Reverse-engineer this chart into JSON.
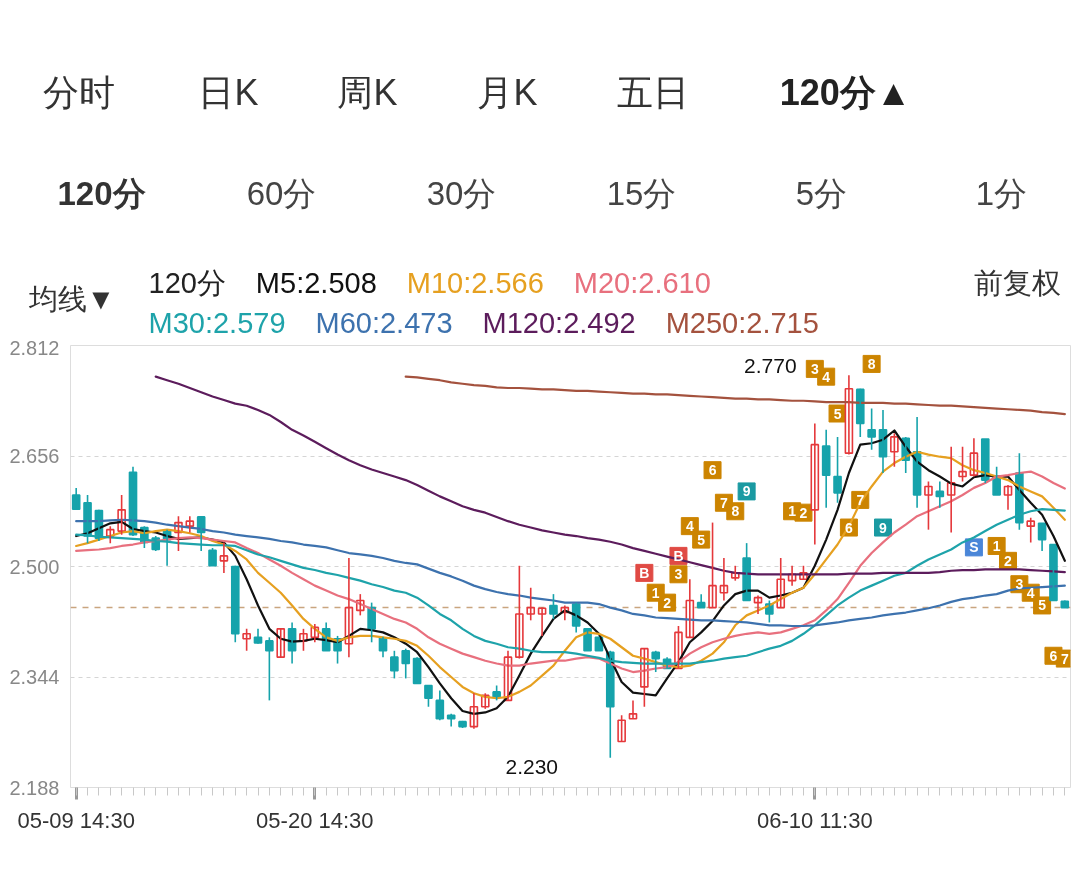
{
  "chart_data": {
    "type": "candlestick",
    "title": "120分",
    "annotations": [
      "分时",
      "日K",
      "周K",
      "月K",
      "五日",
      "120分▲",
      "120分",
      "60分",
      "30分",
      "15分",
      "5分",
      "1分",
      "均线▼",
      "前复权",
      "2.770",
      "2.230"
    ],
    "categories": [
      "05-09 14:30",
      null,
      null,
      null,
      null,
      null,
      null,
      null,
      null,
      null,
      null,
      null,
      null,
      null,
      null,
      null,
      null,
      null,
      null,
      null,
      null,
      "05-20 14:30",
      null,
      null,
      null,
      null,
      null,
      null,
      null,
      null,
      null,
      null,
      null,
      null,
      null,
      null,
      null,
      null,
      null,
      null,
      null,
      null,
      null,
      null,
      null,
      null,
      null,
      null,
      null,
      null,
      null,
      null,
      null,
      null,
      null,
      null,
      null,
      null,
      null,
      null,
      null,
      null,
      null,
      null,
      null,
      "06-10 11:30",
      null,
      null,
      null,
      null,
      null,
      null,
      null,
      null,
      null,
      null,
      null,
      null,
      null,
      null,
      null,
      null,
      null,
      null,
      null,
      null,
      null,
      null
    ],
    "ohlc": [
      [
        2.601,
        2.611,
        2.58,
        2.581
      ],
      [
        2.59,
        2.601,
        2.533,
        2.543
      ],
      [
        2.579,
        2.58,
        2.536,
        2.54
      ],
      [
        2.543,
        2.557,
        2.533,
        2.552
      ],
      [
        2.55,
        2.601,
        2.545,
        2.58
      ],
      [
        2.633,
        2.641,
        2.543,
        2.545
      ],
      [
        2.555,
        2.557,
        2.526,
        2.534
      ],
      [
        2.54,
        2.543,
        2.522,
        2.524
      ],
      [
        2.55,
        2.552,
        2.501,
        2.538
      ],
      [
        2.548,
        2.571,
        2.522,
        2.562
      ],
      [
        2.557,
        2.571,
        2.548,
        2.564
      ],
      [
        2.57,
        2.571,
        2.522,
        2.548
      ],
      [
        2.523,
        2.526,
        2.501,
        2.501
      ],
      [
        2.508,
        2.534,
        2.491,
        2.515
      ],
      [
        2.5,
        2.501,
        2.393,
        2.405
      ],
      [
        2.398,
        2.412,
        2.381,
        2.405
      ],
      [
        2.4,
        2.412,
        2.391,
        2.392
      ],
      [
        2.395,
        2.4,
        2.311,
        2.381
      ],
      [
        2.372,
        2.412,
        2.372,
        2.412
      ],
      [
        2.412,
        2.421,
        2.363,
        2.381
      ],
      [
        2.395,
        2.412,
        2.381,
        2.405
      ],
      [
        2.4,
        2.419,
        2.393,
        2.414
      ],
      [
        2.412,
        2.421,
        2.381,
        2.381
      ],
      [
        2.398,
        2.402,
        2.363,
        2.381
      ],
      [
        2.391,
        2.512,
        2.372,
        2.442
      ],
      [
        2.438,
        2.461,
        2.431,
        2.452
      ],
      [
        2.442,
        2.449,
        2.393,
        2.412
      ],
      [
        2.399,
        2.401,
        2.372,
        2.381
      ],
      [
        2.372,
        2.381,
        2.342,
        2.353
      ],
      [
        2.381,
        2.384,
        2.342,
        2.363
      ],
      [
        2.37,
        2.372,
        2.335,
        2.335
      ],
      [
        2.332,
        2.332,
        2.302,
        2.314
      ],
      [
        2.311,
        2.325,
        2.283,
        2.285
      ],
      [
        2.29,
        2.292,
        2.274,
        2.285
      ],
      [
        2.281,
        2.282,
        2.272,
        2.274
      ],
      [
        2.274,
        2.321,
        2.271,
        2.302
      ],
      [
        2.302,
        2.321,
        2.299,
        2.318
      ],
      [
        2.323,
        2.332,
        2.311,
        2.316
      ],
      [
        2.311,
        2.381,
        2.311,
        2.372
      ],
      [
        2.372,
        2.501,
        2.37,
        2.433
      ],
      [
        2.433,
        2.47,
        2.424,
        2.442
      ],
      [
        2.433,
        2.442,
        2.402,
        2.441
      ],
      [
        2.445,
        2.461,
        2.426,
        2.433
      ],
      [
        2.435,
        2.445,
        2.424,
        2.442
      ],
      [
        2.447,
        2.449,
        2.407,
        2.416
      ],
      [
        2.412,
        2.412,
        2.381,
        2.381
      ],
      [
        2.4,
        2.401,
        2.381,
        2.381
      ],
      [
        2.379,
        2.381,
        2.23,
        2.302
      ],
      [
        2.253,
        2.29,
        2.253,
        2.283
      ],
      [
        2.285,
        2.311,
        2.285,
        2.292
      ],
      [
        2.33,
        2.384,
        2.302,
        2.384
      ],
      [
        2.379,
        2.381,
        2.351,
        2.37
      ],
      [
        2.369,
        2.372,
        2.356,
        2.356
      ],
      [
        2.356,
        2.416,
        2.356,
        2.407
      ],
      [
        2.4,
        2.482,
        2.4,
        2.452
      ],
      [
        2.449,
        2.461,
        2.442,
        2.442
      ],
      [
        2.442,
        2.562,
        2.442,
        2.473
      ],
      [
        2.463,
        2.512,
        2.452,
        2.473
      ],
      [
        2.484,
        2.501,
        2.48,
        2.491
      ],
      [
        2.512,
        2.533,
        2.452,
        2.452
      ],
      [
        2.449,
        2.459,
        2.433,
        2.456
      ],
      [
        2.447,
        2.452,
        2.421,
        2.433
      ],
      [
        2.442,
        2.512,
        2.442,
        2.482
      ],
      [
        2.48,
        2.501,
        2.473,
        2.489
      ],
      [
        2.482,
        2.501,
        2.482,
        2.491
      ],
      [
        2.58,
        2.702,
        2.531,
        2.672
      ],
      [
        2.67,
        2.693,
        2.583,
        2.629
      ],
      [
        2.627,
        2.683,
        2.59,
        2.604
      ],
      [
        2.66,
        2.77,
        2.658,
        2.751
      ],
      [
        2.75,
        2.751,
        2.683,
        2.702
      ],
      [
        2.693,
        2.723,
        2.665,
        2.683
      ],
      [
        2.693,
        2.721,
        2.632,
        2.655
      ],
      [
        2.662,
        2.688,
        2.641,
        2.683
      ],
      [
        2.681,
        2.683,
        2.632,
        2.65
      ],
      [
        2.662,
        2.711,
        2.583,
        2.601
      ],
      [
        2.601,
        2.62,
        2.552,
        2.613
      ],
      [
        2.606,
        2.62,
        2.583,
        2.599
      ],
      [
        2.601,
        2.669,
        2.548,
        2.618
      ],
      [
        2.627,
        2.669,
        2.62,
        2.634
      ],
      [
        2.629,
        2.681,
        2.627,
        2.66
      ],
      [
        2.68,
        2.68,
        2.618,
        2.622
      ],
      [
        2.627,
        2.641,
        2.601,
        2.601
      ],
      [
        2.601,
        2.615,
        2.58,
        2.613
      ],
      [
        2.632,
        2.66,
        2.552,
        2.562
      ],
      [
        2.557,
        2.569,
        2.534,
        2.564
      ],
      [
        2.561,
        2.561,
        2.522,
        2.538
      ],
      [
        2.531,
        2.531,
        2.452,
        2.452
      ],
      [
        2.451,
        2.452,
        2.442,
        2.442
      ]
    ],
    "colors": [
      "#16a3ab",
      "#16a3ab",
      "#16a3ab",
      "#e5383b",
      "#e5383b",
      "#16a3ab",
      "#16a3ab",
      "#16a3ab",
      "#16a3ab",
      "#e5383b",
      "#e5383b",
      "#16a3ab",
      "#16a3ab",
      "#e5383b",
      "#16a3ab",
      "#e5383b",
      "#16a3ab",
      "#16a3ab",
      "#e5383b",
      "#16a3ab",
      "#e5383b",
      "#e5383b",
      "#16a3ab",
      "#16a3ab",
      "#e5383b",
      "#e5383b",
      "#16a3ab",
      "#16a3ab",
      "#16a3ab",
      "#16a3ab",
      "#16a3ab",
      "#16a3ab",
      "#16a3ab",
      "#16a3ab",
      "#16a3ab",
      "#e5383b",
      "#e5383b",
      "#16a3ab",
      "#e5383b",
      "#e5383b",
      "#e5383b",
      "#e5383b",
      "#16a3ab",
      "#e5383b",
      "#16a3ab",
      "#16a3ab",
      "#16a3ab",
      "#16a3ab",
      "#e5383b",
      "#e5383b",
      "#e5383b",
      "#16a3ab",
      "#16a3ab",
      "#e5383b",
      "#e5383b",
      "#16a3ab",
      "#e5383b",
      "#e5383b",
      "#e5383b",
      "#16a3ab",
      "#e5383b",
      "#16a3ab",
      "#e5383b",
      "#e5383b",
      "#e5383b",
      "#e5383b",
      "#16a3ab",
      "#16a3ab",
      "#e5383b",
      "#16a3ab",
      "#16a3ab",
      "#16a3ab",
      "#e5383b",
      "#16a3ab",
      "#16a3ab",
      "#e5383b",
      "#16a3ab",
      "#e5383b",
      "#e5383b",
      "#e5383b",
      "#16a3ab",
      "#16a3ab",
      "#e5383b",
      "#16a3ab",
      "#e5383b",
      "#16a3ab",
      "#16a3ab",
      "#16a3ab"
    ],
    "series": [
      {
        "name": "M5:2.508",
        "type": "line",
        "color": "#111111",
        "values": [
          2.543,
          2.547,
          2.554,
          2.561,
          2.563,
          2.553,
          2.55,
          2.548,
          2.543,
          2.539,
          2.54,
          2.541,
          2.538,
          2.534,
          2.515,
          2.482,
          2.445,
          2.412,
          2.398,
          2.394,
          2.395,
          2.398,
          2.396,
          2.393,
          2.402,
          2.412,
          2.41,
          2.407,
          2.4,
          2.391,
          2.379,
          2.358,
          2.335,
          2.314,
          2.296,
          2.292,
          2.294,
          2.3,
          2.316,
          2.346,
          2.377,
          2.402,
          2.426,
          2.438,
          2.431,
          2.421,
          2.405,
          2.37,
          2.337,
          2.322,
          2.32,
          2.318,
          2.342,
          2.365,
          2.393,
          2.407,
          2.423,
          2.445,
          2.461,
          2.466,
          2.466,
          2.456,
          2.459,
          2.463,
          2.47,
          2.501,
          2.538,
          2.58,
          2.632,
          2.672,
          2.674,
          2.679,
          2.692,
          2.669,
          2.648,
          2.636,
          2.627,
          2.617,
          2.613,
          2.626,
          2.629,
          2.627,
          2.627,
          2.608,
          2.59,
          2.573,
          2.543,
          2.508
        ]
      },
      {
        "name": "M10:2.566",
        "type": "line",
        "color": "#e6a020",
        "values": [
          2.529,
          2.533,
          2.538,
          2.543,
          2.548,
          2.55,
          2.547,
          2.55,
          2.552,
          2.55,
          2.547,
          2.543,
          2.536,
          2.531,
          2.522,
          2.51,
          2.491,
          2.477,
          2.463,
          2.445,
          2.426,
          2.412,
          2.4,
          2.395,
          2.4,
          2.402,
          2.402,
          2.4,
          2.398,
          2.395,
          2.388,
          2.374,
          2.358,
          2.344,
          2.33,
          2.321,
          2.316,
          2.314,
          2.316,
          2.323,
          2.332,
          2.346,
          2.36,
          2.381,
          2.4,
          2.407,
          2.405,
          2.398,
          2.386,
          2.374,
          2.37,
          2.365,
          2.36,
          2.358,
          2.36,
          2.367,
          2.377,
          2.393,
          2.417,
          2.431,
          2.438,
          2.445,
          2.454,
          2.463,
          2.47,
          2.489,
          2.51,
          2.531,
          2.557,
          2.59,
          2.613,
          2.634,
          2.646,
          2.655,
          2.662,
          2.658,
          2.655,
          2.653,
          2.643,
          2.636,
          2.632,
          2.627,
          2.622,
          2.613,
          2.606,
          2.599,
          2.583,
          2.566
        ]
      },
      {
        "name": "M20:2.610",
        "type": "line",
        "color": "#e8707e",
        "values": [
          2.522,
          2.523,
          2.524,
          2.526,
          2.529,
          2.531,
          2.534,
          2.536,
          2.538,
          2.54,
          2.541,
          2.54,
          2.538,
          2.536,
          2.534,
          2.526,
          2.519,
          2.51,
          2.501,
          2.491,
          2.482,
          2.473,
          2.466,
          2.459,
          2.454,
          2.447,
          2.44,
          2.433,
          2.426,
          2.421,
          2.412,
          2.4,
          2.391,
          2.384,
          2.377,
          2.372,
          2.367,
          2.363,
          2.36,
          2.36,
          2.363,
          2.365,
          2.367,
          2.367,
          2.37,
          2.372,
          2.37,
          2.363,
          2.356,
          2.351,
          2.353,
          2.356,
          2.358,
          2.365,
          2.377,
          2.386,
          2.393,
          2.398,
          2.402,
          2.405,
          2.407,
          2.405,
          2.407,
          2.412,
          2.417,
          2.424,
          2.438,
          2.454,
          2.477,
          2.501,
          2.519,
          2.534,
          2.548,
          2.559,
          2.571,
          2.578,
          2.585,
          2.592,
          2.601,
          2.611,
          2.618,
          2.627,
          2.629,
          2.632,
          2.634,
          2.627,
          2.618,
          2.61
        ]
      },
      {
        "name": "M30:2.579",
        "type": "line",
        "color": "#1ea3aa",
        "values": [
          2.545,
          2.544,
          2.542,
          2.541,
          2.54,
          2.539,
          2.538,
          2.536,
          2.535,
          2.533,
          2.532,
          2.531,
          2.53,
          2.53,
          2.529,
          2.523,
          2.517,
          2.513,
          2.508,
          2.503,
          2.498,
          2.495,
          2.491,
          2.488,
          2.484,
          2.48,
          2.475,
          2.471,
          2.466,
          2.463,
          2.456,
          2.445,
          2.433,
          2.424,
          2.412,
          2.402,
          2.395,
          2.391,
          2.386,
          2.384,
          2.381,
          2.379,
          2.379,
          2.379,
          2.377,
          2.374,
          2.371,
          2.367,
          2.365,
          2.364,
          2.363,
          2.363,
          2.363,
          2.363,
          2.363,
          2.365,
          2.367,
          2.37,
          2.372,
          2.374,
          2.379,
          2.384,
          2.388,
          2.395,
          2.405,
          2.417,
          2.431,
          2.445,
          2.456,
          2.466,
          2.473,
          2.48,
          2.487,
          2.491,
          2.501,
          2.51,
          2.517,
          2.524,
          2.534,
          2.541,
          2.55,
          2.559,
          2.566,
          2.573,
          2.578,
          2.581,
          2.58,
          2.579
        ]
      },
      {
        "name": "M60:2.473",
        "type": "line",
        "color": "#3d72ae",
        "values": [
          2.564,
          2.564,
          2.564,
          2.565,
          2.566,
          2.565,
          2.564,
          2.562,
          2.559,
          2.557,
          2.555,
          2.553,
          2.55,
          2.548,
          2.545,
          2.543,
          2.541,
          2.539,
          2.536,
          2.534,
          2.531,
          2.529,
          2.527,
          2.523,
          2.519,
          2.517,
          2.515,
          2.512,
          2.508,
          2.505,
          2.503,
          2.497,
          2.491,
          2.486,
          2.48,
          2.473,
          2.468,
          2.464,
          2.461,
          2.459,
          2.456,
          2.454,
          2.452,
          2.449,
          2.449,
          2.449,
          2.447,
          2.442,
          2.438,
          2.433,
          2.431,
          2.428,
          2.427,
          2.426,
          2.425,
          2.424,
          2.424,
          2.423,
          2.422,
          2.421,
          2.419,
          2.417,
          2.417,
          2.416,
          2.416,
          2.417,
          2.419,
          2.421,
          2.424,
          2.426,
          2.428,
          2.431,
          2.433,
          2.435,
          2.438,
          2.441,
          2.445,
          2.45,
          2.454,
          2.456,
          2.459,
          2.461,
          2.466,
          2.469,
          2.47,
          2.471,
          2.472,
          2.473
        ]
      },
      {
        "name": "M120:2.492",
        "type": "line",
        "color": "#5c1c5c",
        "values": [
          null,
          null,
          null,
          null,
          null,
          null,
          null,
          2.768,
          2.763,
          2.758,
          2.752,
          2.746,
          2.74,
          2.735,
          2.73,
          2.727,
          2.721,
          2.714,
          2.704,
          2.693,
          2.685,
          2.676,
          2.667,
          2.658,
          2.65,
          2.643,
          2.637,
          2.632,
          2.627,
          2.622,
          2.615,
          2.607,
          2.599,
          2.592,
          2.585,
          2.58,
          2.576,
          2.57,
          2.564,
          2.559,
          2.555,
          2.551,
          2.548,
          2.545,
          2.543,
          2.54,
          2.538,
          2.535,
          2.531,
          2.526,
          2.522,
          2.518,
          2.514,
          2.51,
          2.506,
          2.502,
          2.498,
          2.494,
          2.491,
          2.49,
          2.489,
          2.489,
          2.489,
          2.489,
          2.489,
          2.489,
          2.489,
          2.489,
          2.49,
          2.49,
          2.49,
          2.491,
          2.491,
          2.491,
          2.491,
          2.491,
          2.492,
          2.494,
          2.495,
          2.495,
          2.496,
          2.496,
          2.496,
          2.496,
          2.495,
          2.494,
          2.493,
          2.492
        ]
      },
      {
        "name": "M250:2.715",
        "type": "line",
        "color": "#a4523e",
        "values": [
          null,
          null,
          null,
          null,
          null,
          null,
          null,
          null,
          null,
          null,
          null,
          null,
          null,
          null,
          null,
          null,
          null,
          null,
          null,
          null,
          null,
          null,
          null,
          null,
          null,
          null,
          null,
          null,
          null,
          2.768,
          2.767,
          2.765,
          2.763,
          2.76,
          2.758,
          2.756,
          2.755,
          2.753,
          2.752,
          2.752,
          2.751,
          2.75,
          2.75,
          2.749,
          2.748,
          2.748,
          2.747,
          2.746,
          2.745,
          2.744,
          2.744,
          2.743,
          2.743,
          2.742,
          2.741,
          2.74,
          2.739,
          2.738,
          2.737,
          2.737,
          2.736,
          2.736,
          2.735,
          2.734,
          2.734,
          2.733,
          2.732,
          2.732,
          2.732,
          2.731,
          2.731,
          2.731,
          2.73,
          2.73,
          2.729,
          2.728,
          2.727,
          2.727,
          2.726,
          2.725,
          2.724,
          2.723,
          2.722,
          2.721,
          2.72,
          2.718,
          2.717,
          2.715
        ]
      },
      {
        "name": "B",
        "type": "scatter",
        "color": "#e04a44",
        "marker": "square",
        "values": [
          null,
          null,
          null,
          null,
          null,
          null,
          null,
          null,
          null,
          null,
          null,
          null,
          null,
          null,
          null,
          null,
          null,
          null,
          null,
          null,
          null,
          null,
          null,
          null,
          null,
          null,
          null,
          null,
          null,
          null,
          null,
          null,
          null,
          null,
          null,
          null,
          null,
          null,
          null,
          null,
          null,
          null,
          null,
          null,
          null,
          null,
          null,
          null,
          null,
          null,
          2.491,
          null,
          null,
          2.515,
          null,
          null,
          null,
          null,
          null,
          null,
          null,
          null,
          null,
          null,
          null,
          null,
          null,
          null,
          null,
          null,
          null,
          null,
          null,
          null,
          null,
          null,
          null,
          null,
          null,
          null,
          null,
          null,
          null,
          null,
          null,
          null,
          null,
          null
        ]
      },
      {
        "name": "S",
        "type": "scatter",
        "color": "#4a86d8",
        "marker": "square",
        "values": [
          null,
          null,
          null,
          null,
          null,
          null,
          null,
          null,
          null,
          null,
          null,
          null,
          null,
          null,
          null,
          null,
          null,
          null,
          null,
          null,
          null,
          null,
          null,
          null,
          null,
          null,
          null,
          null,
          null,
          null,
          null,
          null,
          null,
          null,
          null,
          null,
          null,
          null,
          null,
          null,
          null,
          null,
          null,
          null,
          null,
          null,
          null,
          null,
          null,
          null,
          null,
          null,
          null,
          null,
          null,
          null,
          null,
          null,
          null,
          null,
          null,
          null,
          null,
          null,
          null,
          null,
          null,
          null,
          null,
          null,
          null,
          null,
          null,
          null,
          null,
          null,
          null,
          null,
          null,
          2.527,
          null,
          null,
          null,
          null,
          null,
          null,
          null,
          null
        ]
      },
      {
        "name": "1",
        "type": "scatter",
        "color": "#cc8400",
        "marker": "square",
        "values": [
          null,
          null,
          null,
          null,
          null,
          null,
          null,
          null,
          null,
          null,
          null,
          null,
          null,
          null,
          null,
          null,
          null,
          null,
          null,
          null,
          null,
          null,
          null,
          null,
          null,
          null,
          null,
          null,
          null,
          null,
          null,
          null,
          null,
          null,
          null,
          null,
          null,
          null,
          null,
          null,
          null,
          null,
          null,
          null,
          null,
          null,
          null,
          null,
          null,
          null,
          null,
          2.463,
          null,
          null,
          null,
          null,
          null,
          null,
          null,
          null,
          null,
          null,
          null,
          2.578,
          null,
          null,
          null,
          null,
          null,
          null,
          null,
          null,
          null,
          null,
          null,
          null,
          null,
          null,
          null,
          null,
          null,
          2.529,
          null,
          null,
          null,
          null,
          null,
          null
        ]
      },
      {
        "name": "2",
        "type": "scatter",
        "color": "#cc8400",
        "marker": "square",
        "values": [
          null,
          null,
          null,
          null,
          null,
          null,
          null,
          null,
          null,
          null,
          null,
          null,
          null,
          null,
          null,
          null,
          null,
          null,
          null,
          null,
          null,
          null,
          null,
          null,
          null,
          null,
          null,
          null,
          null,
          null,
          null,
          null,
          null,
          null,
          null,
          null,
          null,
          null,
          null,
          null,
          null,
          null,
          null,
          null,
          null,
          null,
          null,
          null,
          null,
          null,
          null,
          null,
          2.449,
          null,
          null,
          null,
          null,
          null,
          null,
          null,
          null,
          null,
          null,
          null,
          2.576,
          null,
          null,
          null,
          null,
          null,
          null,
          null,
          null,
          null,
          null,
          null,
          null,
          null,
          null,
          null,
          null,
          null,
          2.508,
          null,
          null,
          null,
          null,
          null
        ]
      },
      {
        "name": "3",
        "type": "scatter",
        "color": "#cc8400",
        "marker": "square",
        "values": [
          null,
          null,
          null,
          null,
          null,
          null,
          null,
          null,
          null,
          null,
          null,
          null,
          null,
          null,
          null,
          null,
          null,
          null,
          null,
          null,
          null,
          null,
          null,
          null,
          null,
          null,
          null,
          null,
          null,
          null,
          null,
          null,
          null,
          null,
          null,
          null,
          null,
          null,
          null,
          null,
          null,
          null,
          null,
          null,
          null,
          null,
          null,
          null,
          null,
          null,
          null,
          null,
          null,
          2.489,
          null,
          null,
          null,
          null,
          null,
          null,
          null,
          null,
          null,
          null,
          null,
          2.779,
          null,
          null,
          null,
          null,
          null,
          null,
          null,
          null,
          null,
          null,
          null,
          null,
          null,
          null,
          null,
          null,
          null,
          2.475,
          null,
          null,
          null,
          null
        ]
      },
      {
        "name": "4",
        "type": "scatter",
        "color": "#cc8400",
        "marker": "square",
        "values": [
          null,
          null,
          null,
          null,
          null,
          null,
          null,
          null,
          null,
          null,
          null,
          null,
          null,
          null,
          null,
          null,
          null,
          null,
          null,
          null,
          null,
          null,
          null,
          null,
          null,
          null,
          null,
          null,
          null,
          null,
          null,
          null,
          null,
          null,
          null,
          null,
          null,
          null,
          null,
          null,
          null,
          null,
          null,
          null,
          null,
          null,
          null,
          null,
          null,
          null,
          null,
          null,
          null,
          null,
          2.557,
          null,
          null,
          null,
          null,
          null,
          null,
          null,
          null,
          null,
          null,
          null,
          2.768,
          null,
          null,
          null,
          null,
          null,
          null,
          null,
          null,
          null,
          null,
          null,
          null,
          null,
          null,
          null,
          null,
          null,
          2.463,
          null,
          null,
          null
        ]
      },
      {
        "name": "5",
        "type": "scatter",
        "color": "#cc8400",
        "marker": "square",
        "values": [
          null,
          null,
          null,
          null,
          null,
          null,
          null,
          null,
          null,
          null,
          null,
          null,
          null,
          null,
          null,
          null,
          null,
          null,
          null,
          null,
          null,
          null,
          null,
          null,
          null,
          null,
          null,
          null,
          null,
          null,
          null,
          null,
          null,
          null,
          null,
          null,
          null,
          null,
          null,
          null,
          null,
          null,
          null,
          null,
          null,
          null,
          null,
          null,
          null,
          null,
          null,
          null,
          null,
          null,
          null,
          2.538,
          null,
          null,
          null,
          null,
          null,
          null,
          null,
          null,
          null,
          null,
          null,
          2.716,
          null,
          null,
          null,
          null,
          null,
          null,
          null,
          null,
          null,
          null,
          null,
          null,
          null,
          null,
          null,
          null,
          null,
          2.445,
          null,
          null
        ]
      },
      {
        "name": "6",
        "type": "scatter",
        "color": "#cc8400",
        "marker": "square",
        "values": [
          null,
          null,
          null,
          null,
          null,
          null,
          null,
          null,
          null,
          null,
          null,
          null,
          null,
          null,
          null,
          null,
          null,
          null,
          null,
          null,
          null,
          null,
          null,
          null,
          null,
          null,
          null,
          null,
          null,
          null,
          null,
          null,
          null,
          null,
          null,
          null,
          null,
          null,
          null,
          null,
          null,
          null,
          null,
          null,
          null,
          null,
          null,
          null,
          null,
          null,
          null,
          null,
          null,
          null,
          null,
          null,
          2.636,
          null,
          null,
          null,
          null,
          null,
          null,
          null,
          null,
          null,
          null,
          null,
          2.555,
          null,
          null,
          null,
          null,
          null,
          null,
          null,
          null,
          null,
          null,
          null,
          null,
          null,
          null,
          null,
          null,
          null,
          2.374,
          null
        ]
      },
      {
        "name": "7",
        "type": "scatter",
        "color": "#cc8400",
        "marker": "square",
        "values": [
          null,
          null,
          null,
          null,
          null,
          null,
          null,
          null,
          null,
          null,
          null,
          null,
          null,
          null,
          null,
          null,
          null,
          null,
          null,
          null,
          null,
          null,
          null,
          null,
          null,
          null,
          null,
          null,
          null,
          null,
          null,
          null,
          null,
          null,
          null,
          null,
          null,
          null,
          null,
          null,
          null,
          null,
          null,
          null,
          null,
          null,
          null,
          null,
          null,
          null,
          null,
          null,
          null,
          null,
          null,
          null,
          null,
          2.59,
          null,
          null,
          null,
          null,
          null,
          null,
          null,
          null,
          null,
          null,
          null,
          2.594,
          null,
          null,
          null,
          null,
          null,
          null,
          null,
          null,
          null,
          null,
          null,
          null,
          null,
          null,
          null,
          null,
          null,
          2.37
        ]
      },
      {
        "name": "8",
        "type": "scatter",
        "color": "#cc8400",
        "marker": "square",
        "values": [
          null,
          null,
          null,
          null,
          null,
          null,
          null,
          null,
          null,
          null,
          null,
          null,
          null,
          null,
          null,
          null,
          null,
          null,
          null,
          null,
          null,
          null,
          null,
          null,
          null,
          null,
          null,
          null,
          null,
          null,
          null,
          null,
          null,
          null,
          null,
          null,
          null,
          null,
          null,
          null,
          null,
          null,
          null,
          null,
          null,
          null,
          null,
          null,
          null,
          null,
          null,
          null,
          null,
          null,
          null,
          null,
          null,
          null,
          2.578,
          null,
          null,
          null,
          null,
          null,
          null,
          null,
          null,
          null,
          null,
          null,
          2.786,
          null,
          null,
          null,
          null,
          null,
          null,
          null,
          null,
          null,
          null,
          null,
          null,
          null,
          null,
          null,
          null,
          null
        ]
      },
      {
        "name": "9",
        "type": "scatter",
        "color": "#1a9aa2",
        "marker": "square",
        "values": [
          null,
          null,
          null,
          null,
          null,
          null,
          null,
          null,
          null,
          null,
          null,
          null,
          null,
          null,
          null,
          null,
          null,
          null,
          null,
          null,
          null,
          null,
          null,
          null,
          null,
          null,
          null,
          null,
          null,
          null,
          null,
          null,
          null,
          null,
          null,
          null,
          null,
          null,
          null,
          null,
          null,
          null,
          null,
          null,
          null,
          null,
          null,
          null,
          null,
          null,
          null,
          null,
          null,
          null,
          null,
          null,
          null,
          null,
          null,
          2.606,
          null,
          null,
          null,
          null,
          null,
          null,
          null,
          null,
          null,
          null,
          null,
          2.555,
          null,
          null,
          null,
          null,
          null,
          null,
          null,
          null,
          null,
          null,
          null,
          null,
          null,
          null,
          null,
          null
        ]
      }
    ],
    "ylim": [
      2.188,
      2.812
    ],
    "yticks": [
      2.812,
      2.656,
      {
        "value": 2.5,
        "label": "2.500"
      },
      2.344,
      2.188
    ],
    "grid": "y",
    "legend": "top",
    "ref_lines": [
      {
        "axis": "y",
        "value": 2.442,
        "color": "#c9a57f",
        "line_style": "dashed"
      }
    ]
  }
}
